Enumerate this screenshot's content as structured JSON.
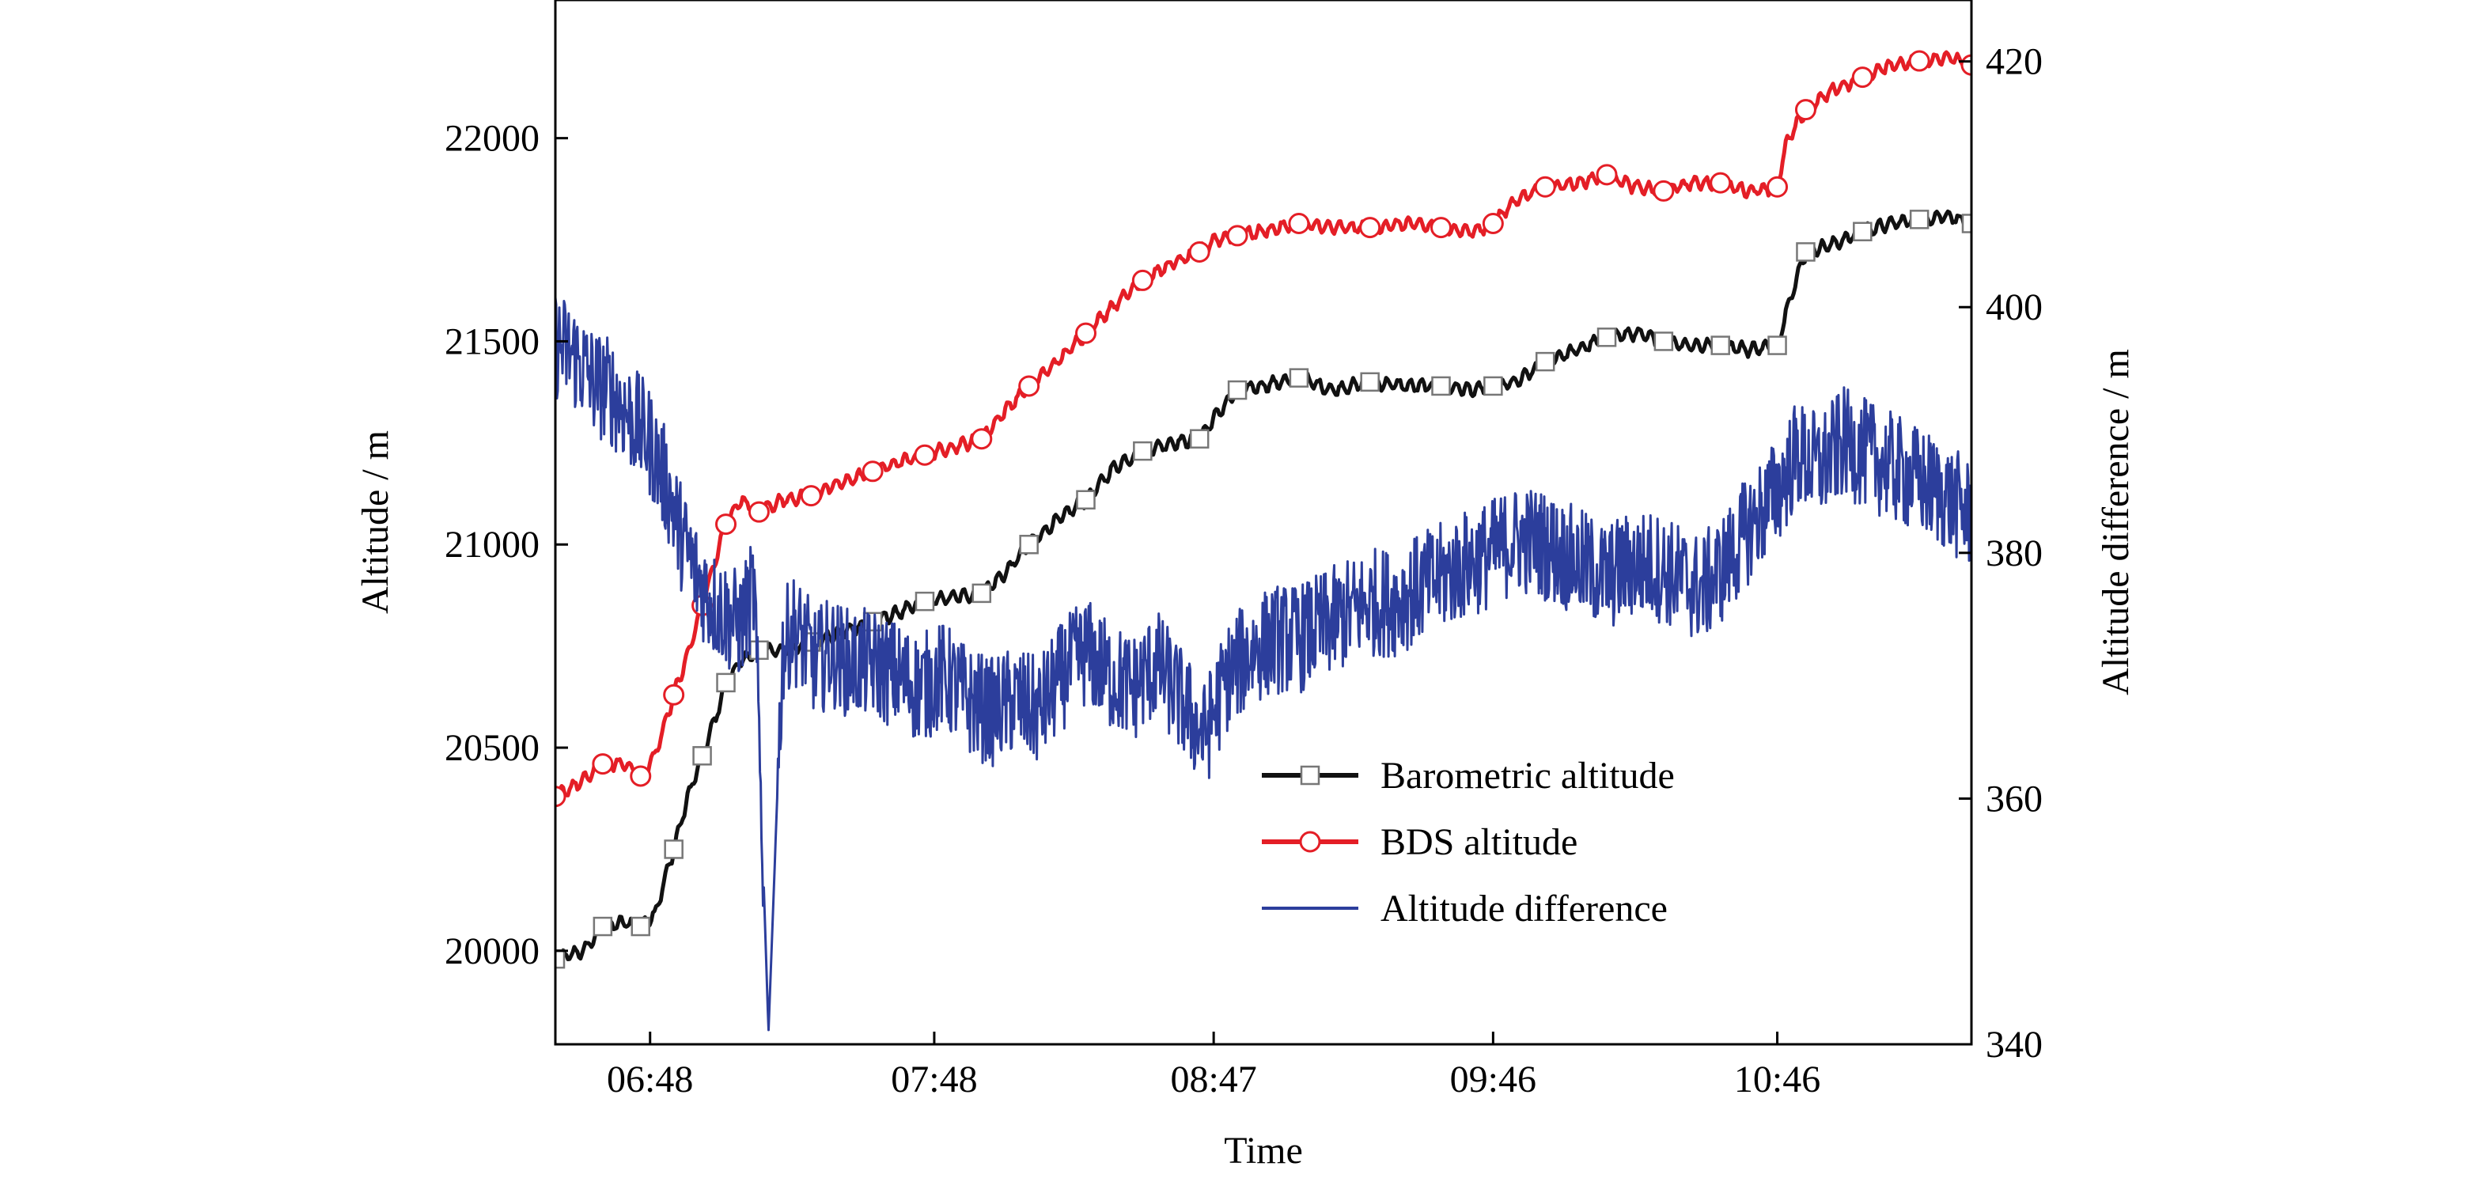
{
  "chart_data": {
    "type": "line",
    "title": "",
    "xlabel": "Time",
    "ylabel_left": "Altitude / m",
    "ylabel_right": "Altitude difference / m",
    "x_ticks": [
      "06:48",
      "07:48",
      "08:47",
      "09:46",
      "10:46"
    ],
    "x_tick_minutes": [
      408,
      468,
      527,
      586,
      646
    ],
    "xlim_minutes": [
      388,
      687
    ],
    "y_left_ticks": [
      20000,
      20500,
      21000,
      21500,
      22000
    ],
    "ylim_left": [
      19770,
      22340
    ],
    "y_right_ticks": [
      340,
      360,
      380,
      400,
      420
    ],
    "ylim_right": [
      340,
      425
    ],
    "legend": {
      "position": "lower-center"
    },
    "series": [
      {
        "name": "Barometric altitude",
        "axis": "left",
        "color": "#111111",
        "marker": "square",
        "x": [
          388,
          394,
          398,
          403,
          406,
          409,
          413,
          416,
          419,
          422,
          424,
          427,
          431,
          436,
          442,
          448,
          455,
          460,
          466,
          472,
          478,
          483,
          488,
          494,
          500,
          506,
          512,
          518,
          524,
          527,
          532,
          537,
          545,
          552,
          560,
          568,
          575,
          582,
          586,
          591,
          597,
          604,
          610,
          616,
          622,
          628,
          634,
          640,
          646,
          648,
          652,
          658,
          664,
          670,
          676,
          682,
          687
        ],
        "y": [
          19980,
          20000,
          20060,
          20070,
          20060,
          20090,
          20250,
          20380,
          20480,
          20580,
          20660,
          20710,
          20740,
          20740,
          20760,
          20780,
          20810,
          20830,
          20860,
          20870,
          20880,
          20930,
          21000,
          21060,
          21110,
          21190,
          21230,
          21250,
          21260,
          21310,
          21380,
          21390,
          21410,
          21380,
          21400,
          21390,
          21390,
          21380,
          21390,
          21400,
          21450,
          21480,
          21510,
          21520,
          21500,
          21490,
          21490,
          21480,
          21490,
          21580,
          21720,
          21740,
          21770,
          21790,
          21800,
          21810,
          21790
        ]
      },
      {
        "name": "BDS altitude",
        "axis": "left",
        "color": "#e41e26",
        "marker": "circle",
        "x": [
          388,
          394,
          398,
          403,
          406,
          409,
          413,
          416,
          419,
          422,
          424,
          427,
          431,
          436,
          442,
          448,
          455,
          460,
          466,
          472,
          478,
          483,
          488,
          494,
          500,
          506,
          512,
          518,
          524,
          527,
          532,
          537,
          545,
          552,
          560,
          568,
          575,
          582,
          586,
          591,
          597,
          604,
          610,
          616,
          622,
          628,
          634,
          640,
          646,
          648,
          652,
          658,
          664,
          670,
          676,
          682,
          687
        ],
        "y": [
          20380,
          20420,
          20460,
          20460,
          20430,
          20480,
          20630,
          20730,
          20850,
          20970,
          21050,
          21110,
          21080,
          21110,
          21120,
          21150,
          21180,
          21200,
          21220,
          21240,
          21260,
          21330,
          21390,
          21450,
          21520,
          21590,
          21650,
          21690,
          21720,
          21750,
          21760,
          21770,
          21790,
          21780,
          21780,
          21790,
          21780,
          21770,
          21790,
          21850,
          21880,
          21890,
          21910,
          21880,
          21870,
          21890,
          21890,
          21870,
          21880,
          21990,
          22070,
          22120,
          22150,
          22180,
          22190,
          22200,
          22180
        ]
      },
      {
        "name": "Altitude difference",
        "axis": "right",
        "color": "#2c3e9c",
        "marker": "none",
        "x": [
          388,
          392,
          396,
          400,
          404,
          408,
          412,
          414,
          418,
          421,
          424,
          427,
          430,
          433,
          436,
          438,
          440,
          443,
          446,
          450,
          455,
          460,
          465,
          470,
          475,
          480,
          485,
          490,
          495,
          500,
          505,
          510,
          515,
          520,
          525,
          527,
          530,
          535,
          540,
          545,
          550,
          555,
          560,
          565,
          570,
          575,
          580,
          586,
          590,
          595,
          600,
          605,
          610,
          615,
          620,
          625,
          630,
          635,
          640,
          646,
          650,
          655,
          660,
          665,
          670,
          675,
          680,
          687
        ],
        "y": [
          397,
          396,
          394,
          393,
          391,
          389,
          385,
          382,
          378,
          376,
          375,
          374,
          377,
          341,
          372,
          374,
          373,
          371,
          372,
          371,
          371,
          370,
          369,
          370,
          368,
          367,
          368,
          367,
          370,
          372,
          370,
          369,
          371,
          368,
          365,
          367,
          370,
          372,
          373,
          373,
          374,
          375,
          376,
          376,
          377,
          378,
          379,
          380,
          381,
          381,
          380,
          379,
          378,
          379,
          379,
          378,
          377,
          379,
          382,
          385,
          388,
          387,
          389,
          388,
          387,
          386,
          385,
          383
        ]
      }
    ]
  }
}
